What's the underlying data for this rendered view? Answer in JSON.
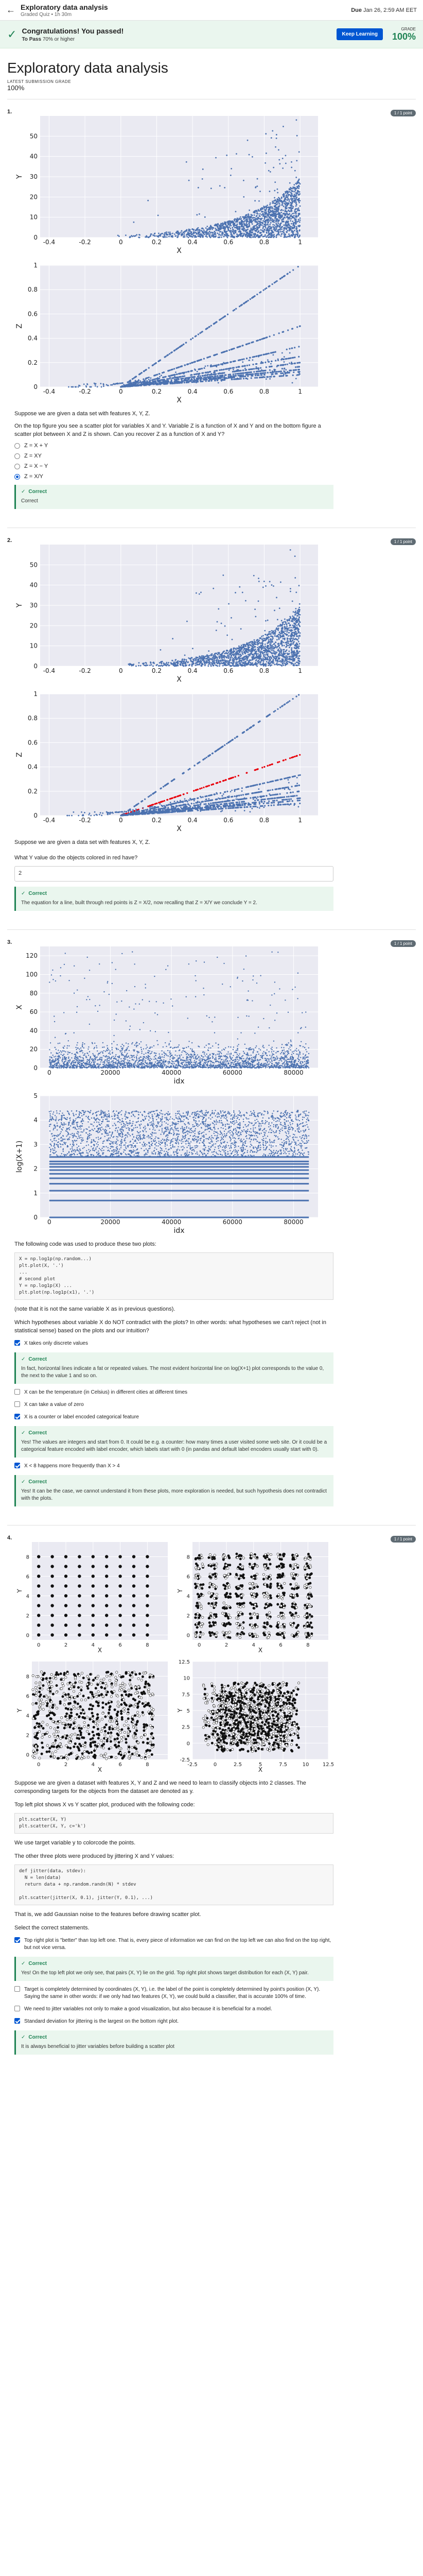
{
  "topbar": {
    "title": "Exploratory data analysis",
    "subtitle": "Graded Quiz • 1h 30m",
    "due_label": "Due",
    "due": "Jan 26, 2:59 AM EET"
  },
  "banner": {
    "title": "Congratulations! You passed!",
    "subtitle_prefix": "To Pass",
    "subtitle": "70% or higher",
    "button": "Keep Learning",
    "grade_label": "GRADE",
    "grade": "100%"
  },
  "header": {
    "title": "Exploratory data analysis",
    "latest_label": "LATEST SUBMISSION GRADE",
    "score": "100%"
  },
  "point_label": "1 / 1 point",
  "q1": {
    "num": "1.",
    "text1": "Suppose we are given a data set with features X, Y, Z.",
    "text2": "On the top figure you see a scatter plot for variables X and Y. Variable Z is a function of X and Y and on the bottom figure a scatter plot between X and Z is shown. Can you recover Z as a function of X and Y?",
    "options": [
      "Z = X + Y",
      "Z = XY",
      "Z = X − Y",
      "Z = X/Y"
    ],
    "selected": 3,
    "feedback": "Correct"
  },
  "q2": {
    "num": "2.",
    "text": "Suppose we are given a data set with features X, Y, Z.",
    "question": "What Y value do the objects colored in red have?",
    "answer": "2",
    "feedback": "Correct",
    "explain": "The equation for a line, built through red points is Z = X/2, now recalling that Z = X/Y we conclude Y = 2."
  },
  "q3": {
    "num": "3.",
    "text1": "The following code was used to produce these two plots:",
    "code": "X = np.log1p(np.random...)\nplt.plot(X, '.')\n...\n# second plot\nY = np.log1p(X) ...\nplt.plot(np.log1p(x1), '.')",
    "text2": "(note that it is not the same variable X as in previous questions).",
    "text3": "Which hypotheses about variable X do NOT contradict with the plots? In other words: what hypotheses we can't reject (not in statistical sense) based on the plots and our intuition?",
    "options": [
      {
        "label": "X takes only discrete values",
        "checked": true,
        "feedback": "Correct",
        "explain": "In fact, horizontal lines indicate a fat or repeated values. The most evident horizontal line on log(X+1) plot corresponds to the value 0, the next to the value 1 and so on."
      },
      {
        "label": "X can be the temperature (in Celsius) in different cities at different times",
        "checked": false
      },
      {
        "label": "X can take a value of zero",
        "checked": false
      },
      {
        "label": "X is a counter or label encoded categorical feature",
        "checked": true,
        "feedback": "Correct",
        "explain": "Yes! The values are integers and start from 0. It could be e.g. a counter: how many times a user visited some web site. Or it could be a categorical feature encoded with label encoder, which labels start with 0 (in pandas and default label encoders usually start with 0)."
      },
      {
        "label": "X < 8 happens more frequently than X > 4",
        "checked": true,
        "feedback": "Correct",
        "explain": "Yes! It can be the case, we cannot understand it from these plots, more exploration is needed, but such hypothesis does not contradict with the plots."
      }
    ]
  },
  "q4": {
    "num": "4.",
    "text1": "Suppose we are given a dataset with features X, Y and Z and we need to learn to classify objects into 2 classes. The corresponding targets for the objects from the dataset are denoted as y.",
    "text2": "Top left plot shows X vs Y scatter plot, produced with the following code:",
    "code1": "plt.scatter(X, Y)\nplt.scatter(X, Y, c='k')",
    "text3": "We use target variable y to colorcode the points.",
    "text4": "The other three plots were produced by jittering X and Y values:",
    "code2": "def jitter(data, stdev):\n  N = len(data)\n  return data + np.random.randn(N) * stdev\n\nplt.scatter(jitter(X, 0.1), jitter(Y, 0.1), ...)",
    "text5": "That is, we add Gaussian noise to the features before drawing scatter plot.",
    "text6": "Select the correct statements.",
    "options": [
      {
        "label": "Top right plot is \"better\" than top left one. That is, every piece of information we can find on the top left we can also find on the top right, but not vice versa.",
        "checked": true,
        "feedback": "Correct",
        "explain": "Yes! On the top left plot we only see, that pairs (X, Y) lie on the grid. Top right plot shows target distribution for each (X, Y) pair."
      },
      {
        "label": "Target is completely determined by coordinates (X, Y), i.e. the label of the point is completely determined by point's position (X, Y). Saying the same in other words: if we only had two features (X, Y), we could build a classifier, that is accurate 100% of time.",
        "checked": false
      },
      {
        "label": "We need to jitter variables not only to make a good visualization, but also because it is beneficial for a model.",
        "checked": false
      },
      {
        "label": "Standard deviation for jittering is the largest on the bottom right plot.",
        "checked": true,
        "feedback": "Correct",
        "explain": "It is always beneficial to jitter variables before building a scatter plot"
      }
    ]
  },
  "colors": {
    "accent": "#0056d2",
    "correct": "#1f8354",
    "point": "#4c72b0",
    "red": "#e8000b"
  }
}
